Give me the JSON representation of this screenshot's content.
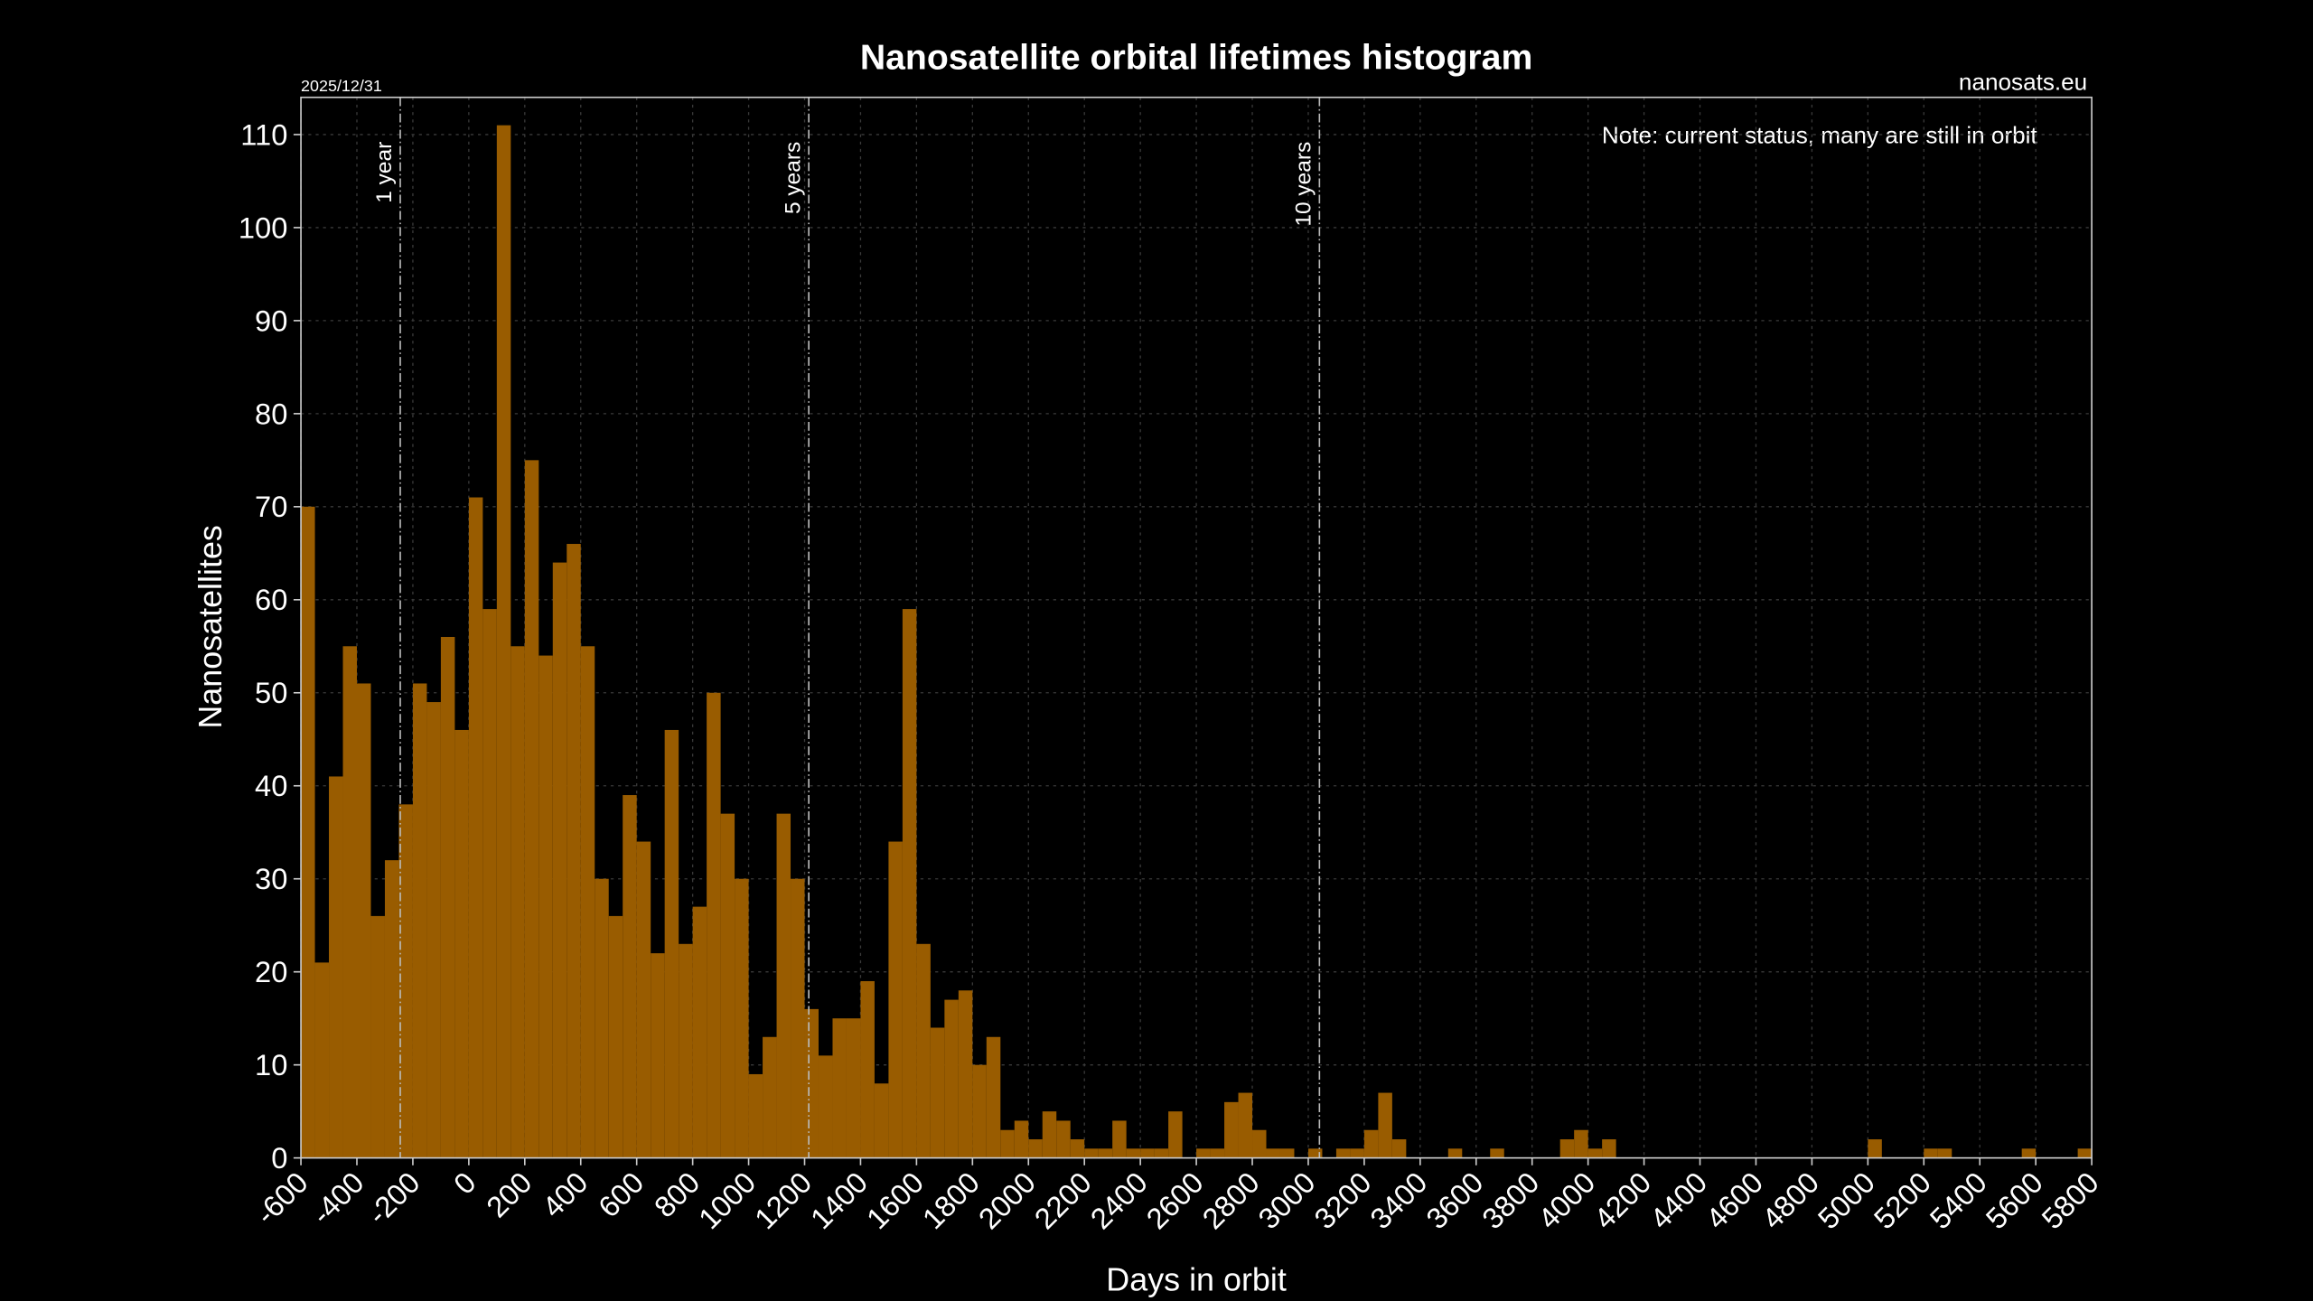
{
  "chart_data": {
    "type": "histogram",
    "title": "Nanosatellite orbital lifetimes histogram",
    "date": "2025/12/31",
    "source": "nanosats.eu",
    "note": "Note: current status, many are still in orbit",
    "xlabel": "Days in orbit",
    "ylabel": "Nanosatellites",
    "color": "#995c00",
    "grid": true,
    "xlim": [
      -600,
      5800
    ],
    "ylim": [
      0,
      114
    ],
    "xticks": [
      -600,
      -400,
      -200,
      0,
      200,
      400,
      600,
      800,
      1000,
      1200,
      1400,
      1600,
      1800,
      2000,
      2200,
      2400,
      2600,
      2800,
      3000,
      3200,
      3400,
      3600,
      3800,
      4000,
      4200,
      4400,
      4600,
      4800,
      5000,
      5200,
      5400,
      5600,
      5800
    ],
    "yticks": [
      0,
      10,
      20,
      30,
      40,
      50,
      60,
      70,
      80,
      90,
      100,
      110
    ],
    "bins": [
      -600,
      -550,
      -500,
      -450,
      -400,
      -350,
      -300,
      -250,
      -200,
      -150,
      -100,
      -50,
      0,
      50,
      100,
      150,
      200,
      250,
      300,
      350,
      400,
      450,
      500,
      550,
      600,
      650,
      700,
      750,
      800,
      850,
      900,
      950,
      1000,
      1050,
      1100,
      1150,
      1200,
      1250,
      1300,
      1350,
      1400,
      1450,
      1500,
      1550,
      1600,
      1650,
      1700,
      1750,
      1800,
      1850,
      1900,
      1950,
      2000,
      2050,
      2100,
      2150,
      2200,
      2250,
      2300,
      2350,
      2400,
      2450,
      2500,
      2550,
      2600,
      2650,
      2700,
      2750,
      2800,
      2850,
      2900,
      2950,
      3000,
      3050,
      3100,
      3150,
      3200,
      3250,
      3300,
      3350,
      3400,
      3450,
      3500,
      3550,
      3600,
      3650,
      3700,
      3750,
      3800,
      3850,
      3900,
      3950,
      4000,
      4050,
      4100,
      4150,
      4200,
      4250,
      4300,
      4350,
      4400,
      4450,
      4500,
      4550,
      4600,
      4650,
      4700,
      4750,
      4800,
      4850,
      4900,
      4950,
      5000,
      5050,
      5100,
      5150,
      5200,
      5250,
      5300,
      5350,
      5400,
      5450,
      5500,
      5550,
      5600,
      5650,
      5700,
      5750,
      5800
    ],
    "counts": [
      70,
      21,
      41,
      55,
      51,
      26,
      32,
      38,
      51,
      49,
      56,
      46,
      71,
      59,
      111,
      55,
      75,
      54,
      64,
      66,
      55,
      30,
      26,
      39,
      34,
      22,
      46,
      23,
      27,
      50,
      37,
      30,
      9,
      13,
      37,
      30,
      16,
      11,
      15,
      15,
      19,
      8,
      34,
      59,
      23,
      14,
      17,
      18,
      10,
      13,
      3,
      4,
      2,
      5,
      4,
      2,
      1,
      1,
      4,
      1,
      1,
      1,
      5,
      0,
      1,
      1,
      6,
      7,
      3,
      1,
      1,
      0,
      1,
      0,
      1,
      1,
      3,
      7,
      2,
      0,
      0,
      0,
      1,
      0,
      0,
      1,
      0,
      0,
      0,
      0,
      2,
      3,
      1,
      2,
      0,
      0,
      0,
      0,
      0,
      0,
      0,
      0,
      0,
      0,
      0,
      0,
      0,
      0,
      0,
      0,
      0,
      0,
      2,
      0,
      0,
      0,
      1,
      1,
      0,
      0,
      0,
      0,
      0,
      1,
      0,
      0,
      0,
      1
    ],
    "annotations": [
      {
        "x": -245,
        "label": "1 year"
      },
      {
        "x": 1215,
        "label": "5 years"
      },
      {
        "x": 3040,
        "label": "10 years"
      }
    ]
  }
}
